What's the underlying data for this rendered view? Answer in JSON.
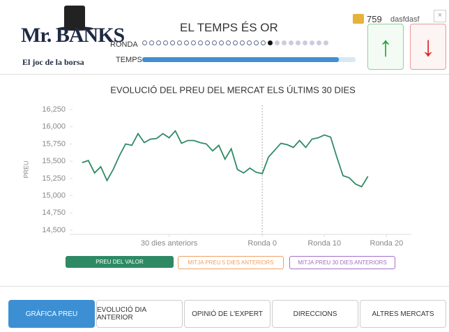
{
  "header": {
    "logo": "Mr. BANKS",
    "tagline": "El joc de la borsa",
    "title": "EL TEMPS ÉS OR",
    "round_label": "RONDA",
    "time_label": "TEMPS",
    "coins": "759",
    "user": "dasfdasf",
    "close": "×"
  },
  "chart_data": {
    "type": "line",
    "title": "EVOLUCIÓ DEL PREU DEL MERCAT ELS ÚLTIMS 30 DIES",
    "ylabel": "PREU",
    "x": [
      -29,
      -28,
      -27,
      -26,
      -25,
      -24,
      -23,
      -22,
      -21,
      -20,
      -19,
      -18,
      -17,
      -16,
      -15,
      -14,
      -13,
      -12,
      -11,
      -10,
      -9,
      -8,
      -7,
      -6,
      -5,
      -4,
      -3,
      -2,
      -1,
      0,
      1,
      2,
      3,
      4,
      5,
      6,
      7,
      8,
      9,
      10,
      11,
      12,
      13,
      14,
      15,
      16,
      17
    ],
    "series": [
      {
        "name": "PREU DEL VALOR",
        "color": "#2e8a64",
        "values": [
          15480,
          15510,
          15330,
          15420,
          15220,
          15380,
          15580,
          15750,
          15730,
          15900,
          15770,
          15820,
          15830,
          15900,
          15840,
          15940,
          15760,
          15800,
          15800,
          15770,
          15750,
          15650,
          15730,
          15530,
          15680,
          15380,
          15330,
          15400,
          15340,
          15320,
          15560,
          15660,
          15760,
          15740,
          15700,
          15800,
          15700,
          15820,
          15840,
          15880,
          15850,
          15560,
          15290,
          15260,
          15170,
          15130,
          15280
        ]
      }
    ],
    "toggles": [
      {
        "name": "MITJA PREU 5 DIES ANTERIORS",
        "color": "#f0a060"
      },
      {
        "name": "MITJA PREU 30 DIES ANTERIORS",
        "color": "#a070c8"
      }
    ],
    "xlim": [
      -31,
      24
    ],
    "ylim": [
      14500,
      16250
    ],
    "xticks": [
      {
        "value": -15,
        "label": "30 dies anteriors"
      },
      {
        "value": 0,
        "label": "Ronda 0"
      },
      {
        "value": 10,
        "label": "Ronda 10"
      },
      {
        "value": 20,
        "label": "Ronda 20"
      }
    ],
    "yticks": [
      {
        "value": 14500,
        "label": "14,500"
      },
      {
        "value": 14750,
        "label": "14,750"
      },
      {
        "value": 15000,
        "label": "15,000"
      },
      {
        "value": 15250,
        "label": "15,250"
      },
      {
        "value": 15500,
        "label": "15,500"
      },
      {
        "value": 15750,
        "label": "15,750"
      },
      {
        "value": 16000,
        "label": "16,000"
      },
      {
        "value": 16250,
        "label": "16,250"
      }
    ],
    "vline": 0,
    "grid": false
  },
  "tabs": [
    "GRÀFICA PREU",
    "EVOLUCIÓ DIA ANTERIOR",
    "OPINIÓ DE L'EXPERT",
    "DIRECCIONS",
    "ALTRES MERCATS"
  ]
}
